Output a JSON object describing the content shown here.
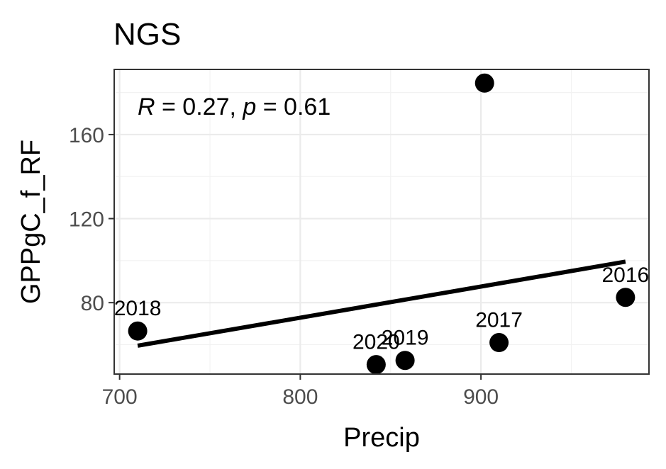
{
  "chart_data": {
    "type": "scatter",
    "title": "NGS",
    "xlabel": "Precip",
    "ylabel": "GPPgC_f_RF",
    "xlim": [
      697,
      993
    ],
    "ylim": [
      46,
      191
    ],
    "x_ticks": [
      700,
      800,
      900
    ],
    "y_ticks": [
      80,
      120,
      160
    ],
    "grid": true,
    "annotation": {
      "R_symbol": "R",
      "R_value": " = 0.27, ",
      "p_symbol": "p",
      "p_value": " = 0.61"
    },
    "points": [
      {
        "x": 710,
        "y": 66.5,
        "label": "2018"
      },
      {
        "x": 842,
        "y": 50.5,
        "label": "2020"
      },
      {
        "x": 858,
        "y": 52.5,
        "label": "2019"
      },
      {
        "x": 902,
        "y": 184.5,
        "label": ""
      },
      {
        "x": 910,
        "y": 61.0,
        "label": "2017"
      },
      {
        "x": 980,
        "y": 82.5,
        "label": "2016"
      }
    ],
    "regression": {
      "x": [
        710,
        980
      ],
      "y": [
        59.5,
        99.5
      ]
    },
    "colors": {
      "points": "#000000",
      "line": "#000000"
    }
  }
}
